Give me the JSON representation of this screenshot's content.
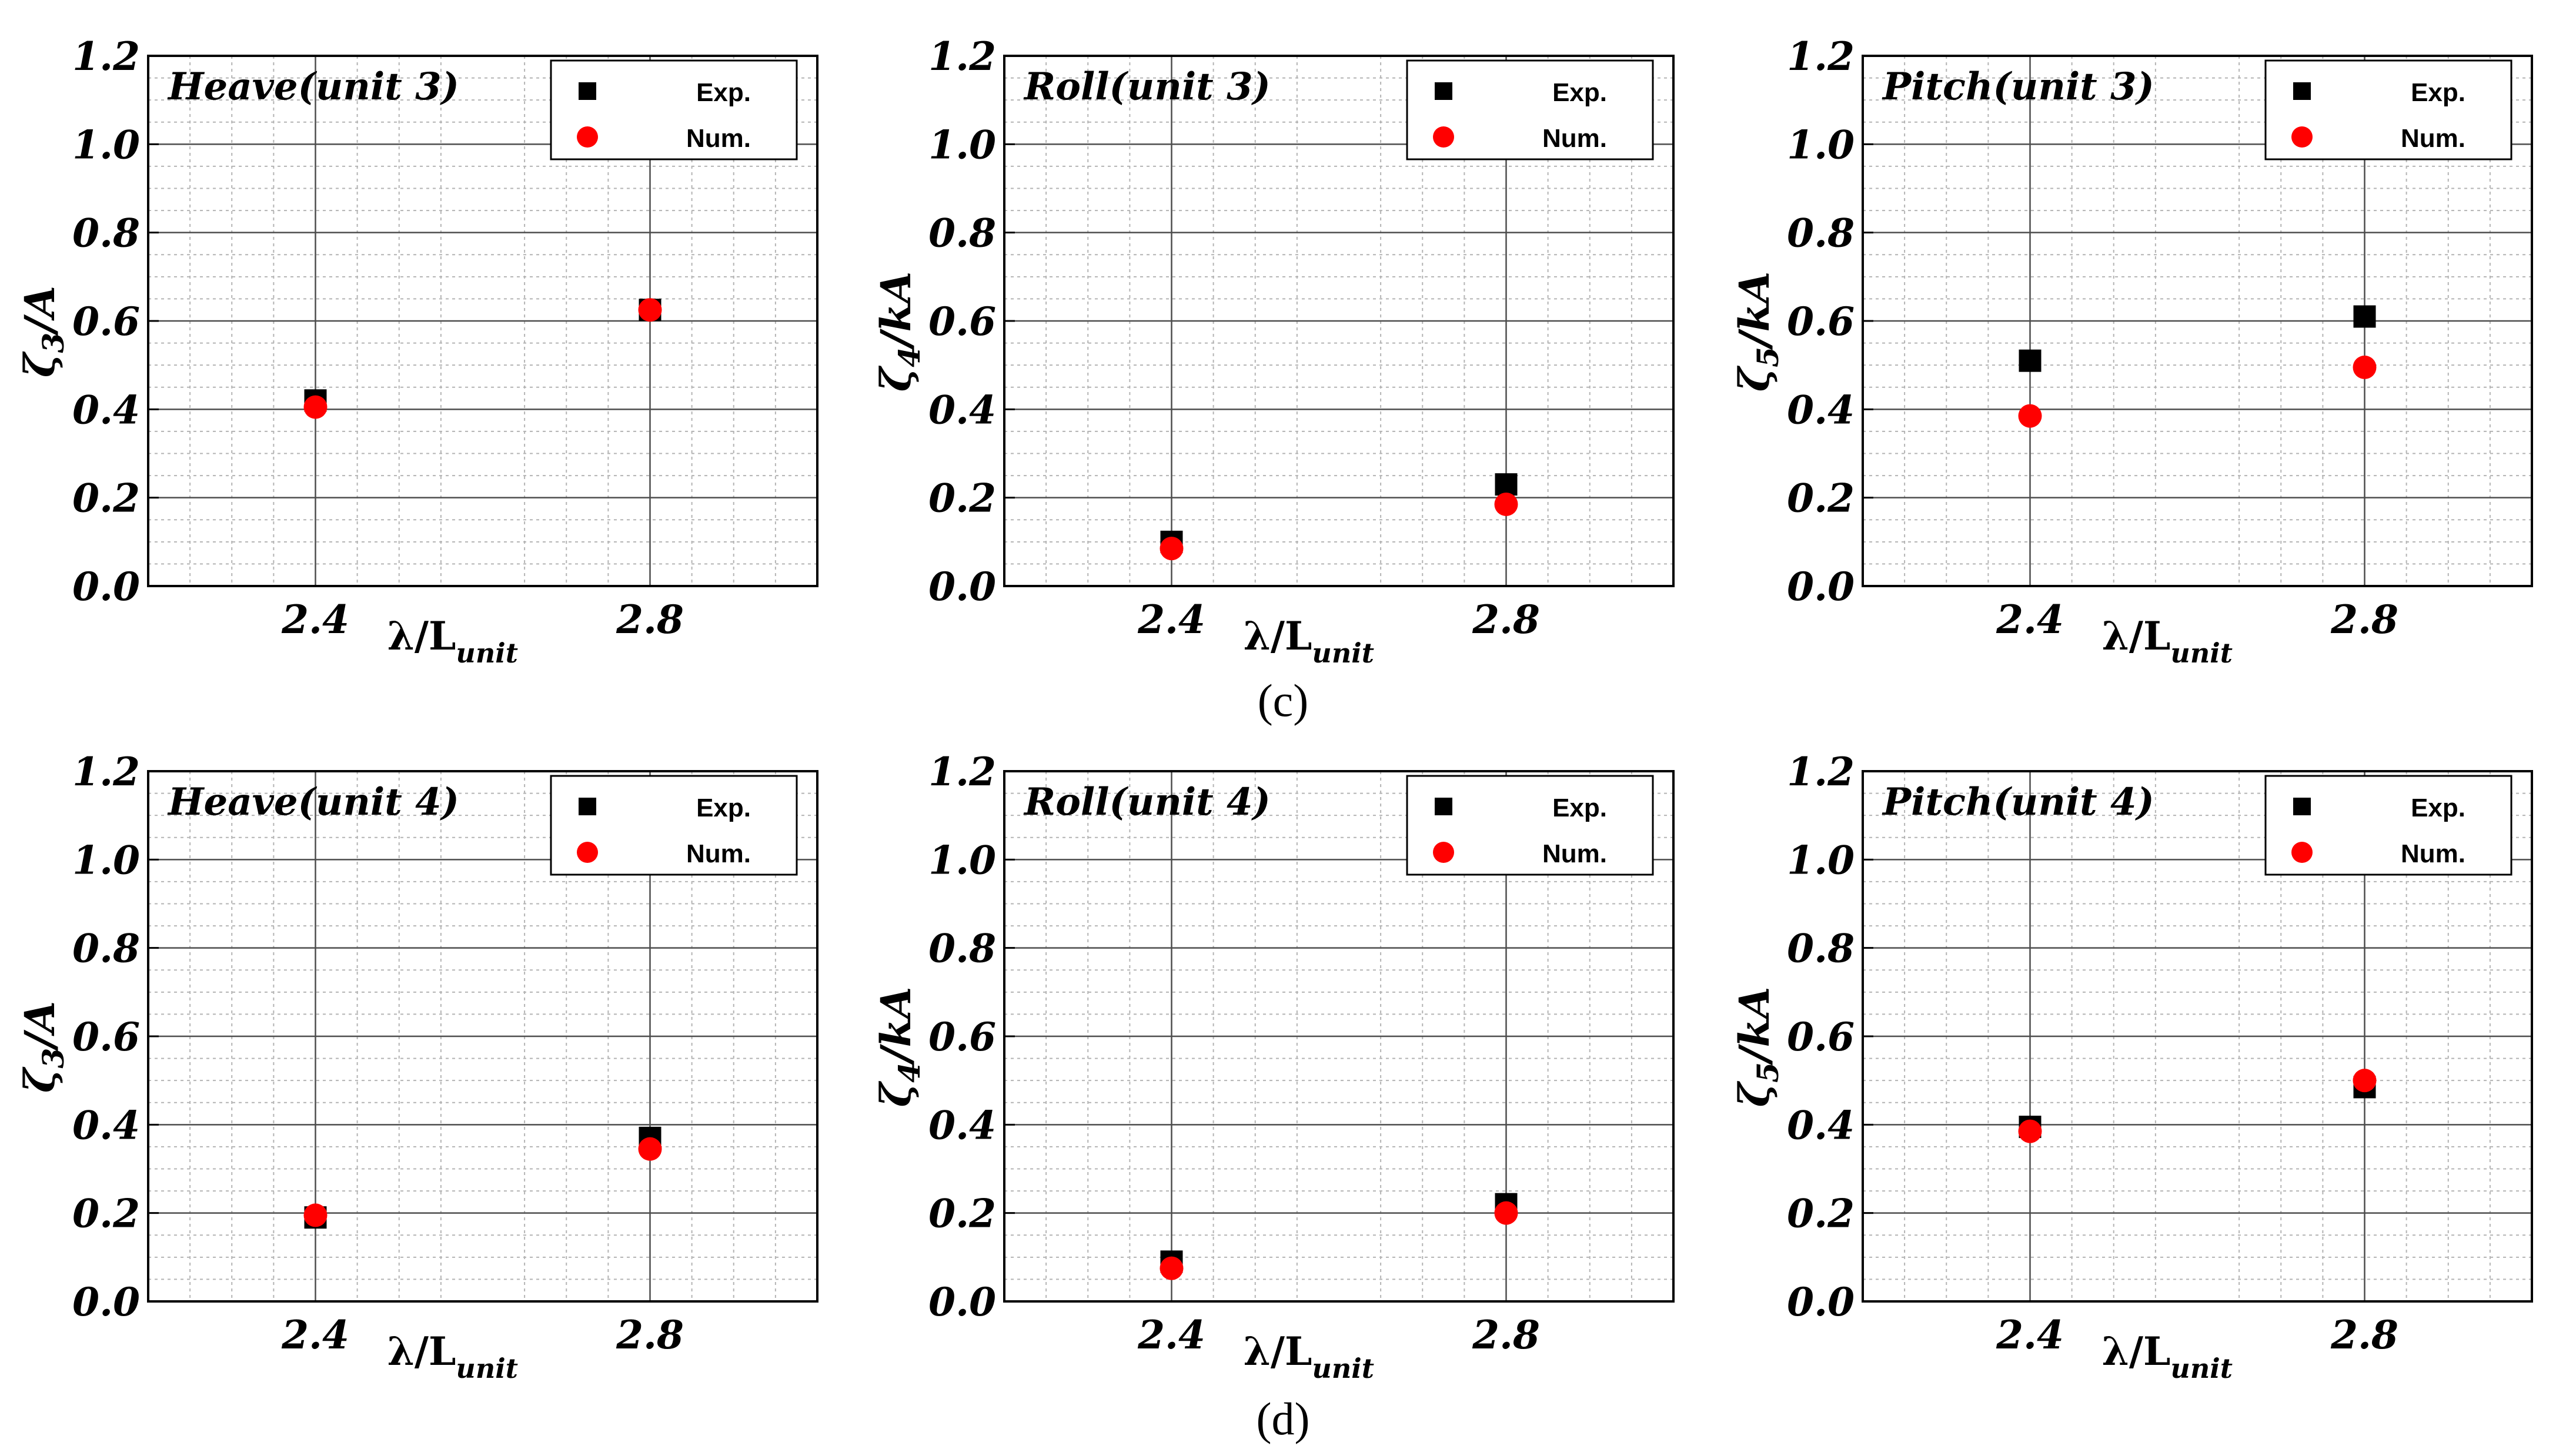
{
  "colors": {
    "exp": "#000000",
    "num": "#ff0000",
    "grid_major": "#4d4d4d",
    "grid_minor": "#b4b4b4"
  },
  "captions": [
    "(c)",
    "(d)"
  ],
  "chart_data": [
    {
      "type": "scatter",
      "title": "Heave(unit 3)",
      "ylabel_sym": "ζ",
      "ylabel_sub": "3",
      "ylabel_rest": "/A",
      "xlabel_main": "λ/L",
      "xlabel_sub": "unit",
      "xticks": [
        "2.4",
        "2.8"
      ],
      "yticks": [
        "0.0",
        "0.2",
        "0.4",
        "0.6",
        "0.8",
        "1.0",
        "1.2"
      ],
      "xlim": [
        2.2,
        3.0
      ],
      "ylim": [
        0,
        1.2
      ],
      "grid": true,
      "legend": "top-right",
      "series": [
        {
          "name": "Exp.",
          "marker": "square",
          "x": [
            2.4,
            2.8
          ],
          "y": [
            0.42,
            0.625
          ]
        },
        {
          "name": "Num.",
          "marker": "circle",
          "x": [
            2.4,
            2.8
          ],
          "y": [
            0.405,
            0.625
          ]
        }
      ]
    },
    {
      "type": "scatter",
      "title": "Roll(unit 3)",
      "ylabel_sym": "ζ",
      "ylabel_sub": "4",
      "ylabel_rest": "/kA",
      "xlabel_main": "λ/L",
      "xlabel_sub": "unit",
      "xticks": [
        "2.4",
        "2.8"
      ],
      "yticks": [
        "0.0",
        "0.2",
        "0.4",
        "0.6",
        "0.8",
        "1.0",
        "1.2"
      ],
      "xlim": [
        2.2,
        3.0
      ],
      "ylim": [
        0,
        1.2
      ],
      "grid": true,
      "legend": "top-right",
      "series": [
        {
          "name": "Exp.",
          "marker": "square",
          "x": [
            2.4,
            2.8
          ],
          "y": [
            0.1,
            0.23
          ]
        },
        {
          "name": "Num.",
          "marker": "circle",
          "x": [
            2.4,
            2.8
          ],
          "y": [
            0.085,
            0.185
          ]
        }
      ]
    },
    {
      "type": "scatter",
      "title": "Pitch(unit 3)",
      "ylabel_sym": "ζ",
      "ylabel_sub": "5",
      "ylabel_rest": "/kA",
      "xlabel_main": "λ/L",
      "xlabel_sub": "unit",
      "xticks": [
        "2.4",
        "2.8"
      ],
      "yticks": [
        "0.0",
        "0.2",
        "0.4",
        "0.6",
        "0.8",
        "1.0",
        "1.2"
      ],
      "xlim": [
        2.2,
        3.0
      ],
      "ylim": [
        0,
        1.2
      ],
      "grid": true,
      "legend": "top-right",
      "series": [
        {
          "name": "Exp.",
          "marker": "square",
          "x": [
            2.4,
            2.8
          ],
          "y": [
            0.51,
            0.61
          ]
        },
        {
          "name": "Num.",
          "marker": "circle",
          "x": [
            2.4,
            2.8
          ],
          "y": [
            0.385,
            0.495
          ]
        }
      ]
    },
    {
      "type": "scatter",
      "title": "Heave(unit 4)",
      "ylabel_sym": "ζ",
      "ylabel_sub": "3",
      "ylabel_rest": "/A",
      "xlabel_main": "λ/L",
      "xlabel_sub": "unit",
      "xticks": [
        "2.4",
        "2.8"
      ],
      "yticks": [
        "0.0",
        "0.2",
        "0.4",
        "0.6",
        "0.8",
        "1.0",
        "1.2"
      ],
      "xlim": [
        2.2,
        3.0
      ],
      "ylim": [
        0,
        1.2
      ],
      "grid": true,
      "legend": "top-right",
      "series": [
        {
          "name": "Exp.",
          "marker": "square",
          "x": [
            2.4,
            2.8
          ],
          "y": [
            0.19,
            0.37
          ]
        },
        {
          "name": "Num.",
          "marker": "circle",
          "x": [
            2.4,
            2.8
          ],
          "y": [
            0.195,
            0.345
          ]
        }
      ]
    },
    {
      "type": "scatter",
      "title": "Roll(unit 4)",
      "ylabel_sym": "ζ",
      "ylabel_sub": "4",
      "ylabel_rest": "/kA",
      "xlabel_main": "λ/L",
      "xlabel_sub": "unit",
      "xticks": [
        "2.4",
        "2.8"
      ],
      "yticks": [
        "0.0",
        "0.2",
        "0.4",
        "0.6",
        "0.8",
        "1.0",
        "1.2"
      ],
      "xlim": [
        2.2,
        3.0
      ],
      "ylim": [
        0,
        1.2
      ],
      "grid": true,
      "legend": "top-right",
      "series": [
        {
          "name": "Exp.",
          "marker": "square",
          "x": [
            2.4,
            2.8
          ],
          "y": [
            0.09,
            0.22
          ]
        },
        {
          "name": "Num.",
          "marker": "circle",
          "x": [
            2.4,
            2.8
          ],
          "y": [
            0.075,
            0.2
          ]
        }
      ]
    },
    {
      "type": "scatter",
      "title": "Pitch(unit 4)",
      "ylabel_sym": "ζ",
      "ylabel_sub": "5",
      "ylabel_rest": "/kA",
      "xlabel_main": "λ/L",
      "xlabel_sub": "unit",
      "xticks": [
        "2.4",
        "2.8"
      ],
      "yticks": [
        "0.0",
        "0.2",
        "0.4",
        "0.6",
        "0.8",
        "1.0",
        "1.2"
      ],
      "xlim": [
        2.2,
        3.0
      ],
      "ylim": [
        0,
        1.2
      ],
      "grid": true,
      "legend": "top-right",
      "series": [
        {
          "name": "Exp.",
          "marker": "square",
          "x": [
            2.4,
            2.8
          ],
          "y": [
            0.395,
            0.485
          ]
        },
        {
          "name": "Num.",
          "marker": "circle",
          "x": [
            2.4,
            2.8
          ],
          "y": [
            0.385,
            0.5
          ]
        }
      ]
    }
  ]
}
